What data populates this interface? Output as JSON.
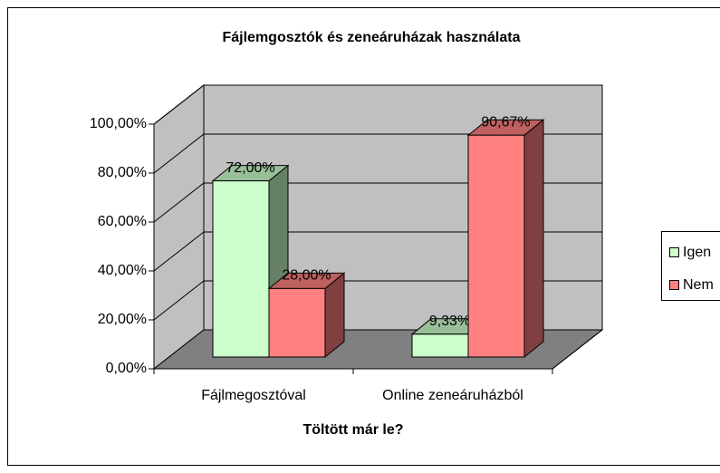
{
  "chart_data": {
    "type": "bar3d",
    "title": "Fájlemgosztók és zeneáruházak használata",
    "x_label": "Töltött már le?",
    "categories": [
      "Fájlmegosztóval",
      "Online zeneáruházból"
    ],
    "series": [
      {
        "name": "Igen",
        "color": "#ccffcc",
        "values": [
          72,
          9.33
        ],
        "value_labels": [
          "72,00%",
          "9,33%"
        ]
      },
      {
        "name": "Nem",
        "color": "#ff8080",
        "values": [
          28,
          90.67
        ],
        "value_labels": [
          "28,00%",
          "90,67%"
        ]
      }
    ],
    "ylim": [
      0,
      100
    ],
    "yticks": [
      {
        "value": 0,
        "label": "0,00%"
      },
      {
        "value": 20,
        "label": "20,00%"
      },
      {
        "value": 40,
        "label": "40,00%"
      },
      {
        "value": 60,
        "label": "60,00%"
      },
      {
        "value": 80,
        "label": "80,00%"
      },
      {
        "value": 100,
        "label": "100,00%"
      }
    ],
    "grid": true,
    "legend": "right"
  }
}
